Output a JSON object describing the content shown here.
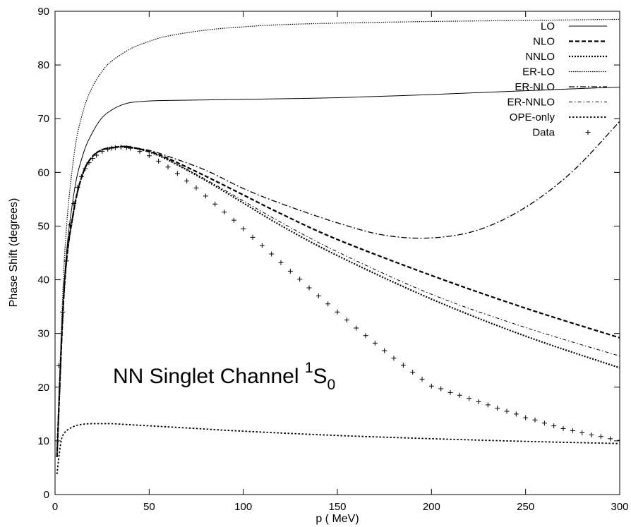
{
  "chart_data": {
    "type": "line",
    "title": "",
    "xlabel": "p ( MeV)",
    "ylabel": "Phase Shift (degrees)",
    "xlim": [
      0,
      300
    ],
    "ylim": [
      0,
      90
    ],
    "xticks": [
      "0",
      "50",
      "100",
      "150",
      "200",
      "250",
      "300"
    ],
    "yticks": [
      "0",
      "10",
      "20",
      "30",
      "40",
      "50",
      "60",
      "70",
      "80",
      "90"
    ],
    "grid": false,
    "legend_position": "top-right",
    "annotation": {
      "main": "NN Singlet Channel ",
      "sup": "1",
      "letter": "S",
      "sub": "0"
    },
    "series": [
      {
        "name": "LO",
        "style": "solid",
        "x": [
          1,
          5,
          10,
          15,
          20,
          25,
          30,
          35,
          40,
          50,
          60,
          80,
          100,
          150,
          200,
          250,
          300
        ],
        "y": [
          7,
          40,
          56,
          63.5,
          67.5,
          70.2,
          71.6,
          72.5,
          73,
          73.3,
          73.4,
          73.5,
          73.6,
          73.9,
          74.5,
          75.2,
          75.9
        ]
      },
      {
        "name": "NLO",
        "style": "dashed-thick",
        "x": [
          1,
          5,
          10,
          15,
          20,
          25,
          30,
          35,
          40,
          50,
          60,
          80,
          100,
          120,
          150,
          200,
          250,
          300
        ],
        "y": [
          7,
          39,
          53,
          60,
          63,
          64.2,
          64.6,
          64.8,
          64.7,
          63.9,
          62.6,
          59.3,
          55.8,
          52.3,
          47.5,
          40.8,
          34.7,
          29.2
        ]
      },
      {
        "name": "NNLO",
        "style": "dotted-thick",
        "x": [
          1,
          5,
          10,
          15,
          20,
          25,
          30,
          35,
          40,
          50,
          60,
          80,
          100,
          120,
          150,
          200,
          250,
          300
        ],
        "y": [
          7,
          39,
          53,
          60,
          63,
          64.2,
          64.6,
          64.8,
          64.7,
          63.8,
          62.3,
          58.5,
          54.3,
          50.1,
          44.5,
          36.4,
          29.5,
          23.6
        ]
      },
      {
        "name": "ER-LO",
        "style": "dotted-fine",
        "x": [
          1,
          5,
          10,
          15,
          20,
          25,
          30,
          40,
          50,
          60,
          80,
          100,
          120,
          150,
          200,
          250,
          300
        ],
        "y": [
          7,
          44,
          63,
          71.5,
          76,
          78.8,
          80.7,
          83,
          84.4,
          85.4,
          86.5,
          87.1,
          87.5,
          87.8,
          88.1,
          88.3,
          88.5
        ]
      },
      {
        "name": "ER-NLO",
        "style": "dash-dot-long",
        "x": [
          1,
          5,
          10,
          15,
          20,
          25,
          30,
          35,
          40,
          50,
          60,
          80,
          100,
          120,
          150,
          175,
          200,
          225,
          250,
          275,
          300
        ],
        "y": [
          7,
          39,
          53,
          60,
          63,
          64.2,
          64.6,
          64.8,
          64.7,
          64.1,
          63,
          60.4,
          57,
          54.2,
          50.6,
          48.3,
          47.8,
          49.3,
          53.5,
          60.2,
          69.5
        ]
      },
      {
        "name": "ER-NNLO",
        "style": "dash-dot",
        "x": [
          1,
          5,
          10,
          15,
          20,
          25,
          30,
          35,
          40,
          50,
          60,
          80,
          100,
          120,
          150,
          200,
          250,
          300
        ],
        "y": [
          7,
          39,
          53,
          60,
          63,
          64.2,
          64.6,
          64.8,
          64.7,
          63.8,
          62.4,
          58.7,
          54.7,
          50.7,
          45.2,
          37.3,
          31.1,
          25.8
        ]
      },
      {
        "name": "OPE-only",
        "style": "dotted-medium",
        "x": [
          1,
          3,
          5,
          10,
          15,
          20,
          25,
          30,
          40,
          50,
          75,
          100,
          150,
          200,
          250,
          300
        ],
        "y": [
          3.8,
          9.5,
          11.5,
          12.7,
          13.1,
          13.2,
          13.2,
          13.2,
          13,
          12.8,
          12.3,
          11.8,
          11,
          10.4,
          9.9,
          9.5
        ]
      },
      {
        "name": "Data",
        "style": "marker-plus",
        "x": [
          2,
          4,
          6,
          8,
          10,
          12,
          14,
          16,
          18,
          20,
          22,
          25,
          28,
          30,
          32,
          35,
          38,
          40,
          45,
          50,
          55,
          60,
          65,
          70,
          75,
          80,
          85,
          90,
          95,
          100,
          105,
          110,
          115,
          120,
          125,
          130,
          135,
          140,
          145,
          150,
          155,
          160,
          165,
          170,
          175,
          180,
          185,
          190,
          195,
          200,
          205,
          210,
          215,
          220,
          225,
          230,
          235,
          240,
          245,
          250,
          255,
          260,
          265,
          270,
          275,
          280,
          285,
          290,
          295,
          300
        ],
        "y": [
          24,
          34,
          43.5,
          50.2,
          54.2,
          57.2,
          59.2,
          60.7,
          61.8,
          62.6,
          63.2,
          63.9,
          64.3,
          64.5,
          64.6,
          64.7,
          64.6,
          64.5,
          63.9,
          63.1,
          62.1,
          61,
          59.8,
          58.4,
          57.1,
          55.6,
          54.1,
          52.6,
          51.1,
          49.5,
          47.9,
          46.4,
          44.8,
          43.2,
          41.6,
          40.1,
          38.5,
          37,
          35.5,
          34,
          32.5,
          31,
          29.6,
          28.2,
          26.8,
          25.4,
          24.1,
          22.8,
          21.5,
          20.2,
          19.7,
          19,
          18.5,
          17.9,
          17.3,
          16.7,
          16.1,
          15.5,
          15,
          14.3,
          13.9,
          13.3,
          12.8,
          12.3,
          11.9,
          11.5,
          11.1,
          10.8,
          10.4,
          10.1
        ]
      }
    ]
  }
}
